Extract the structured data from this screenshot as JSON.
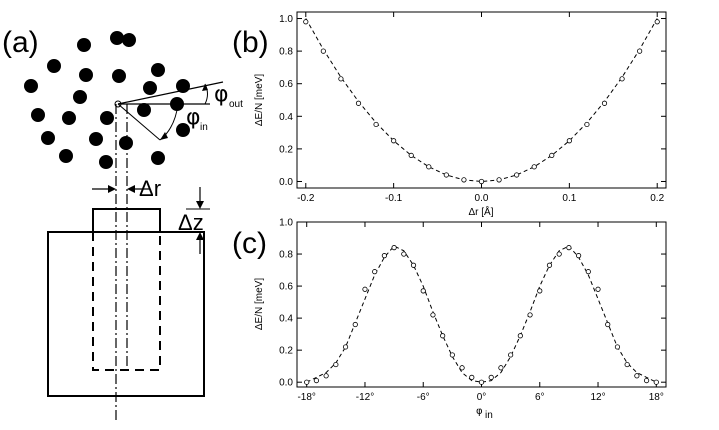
{
  "panels": {
    "a": "(a)",
    "b": "(b)",
    "c": "(c)"
  },
  "schematic": {
    "phi_out_symbol": "φ",
    "phi_out_sub": "out",
    "phi_in_symbol": "φ",
    "phi_in_sub": "in",
    "delta_r": "Δr",
    "delta_z": "Δz"
  },
  "chart_data": [
    {
      "type": "scatter",
      "panel": "(b)",
      "title": "",
      "xlabel": "Δr [Å]",
      "ylabel": "ΔE/N [meV]",
      "xlim": [
        -0.21,
        0.21
      ],
      "ylim": [
        -0.04,
        1.04
      ],
      "xticks": [
        -0.2,
        -0.1,
        0.0,
        0.1,
        0.2
      ],
      "xtick_labels": [
        "-0.2",
        "-0.1",
        "0.0",
        "0.1",
        "0.2"
      ],
      "yticks": [
        0.0,
        0.2,
        0.4,
        0.6,
        0.8,
        1.0
      ],
      "ytick_labels": [
        "0.0",
        "0.2",
        "0.4",
        "0.6",
        "0.8",
        "1.0"
      ],
      "grid": false,
      "series": [
        {
          "style": "markers",
          "x": [
            -0.2,
            -0.18,
            -0.16,
            -0.14,
            -0.12,
            -0.1,
            -0.08,
            -0.06,
            -0.04,
            -0.02,
            0.0,
            0.02,
            0.04,
            0.06,
            0.08,
            0.1,
            0.12,
            0.14,
            0.16,
            0.18,
            0.2
          ],
          "y": [
            0.98,
            0.8,
            0.63,
            0.48,
            0.35,
            0.25,
            0.16,
            0.09,
            0.04,
            0.01,
            0.0,
            0.01,
            0.04,
            0.09,
            0.16,
            0.25,
            0.35,
            0.48,
            0.63,
            0.8,
            0.98
          ]
        },
        {
          "style": "dashed-fit",
          "x": [
            -0.2,
            -0.18,
            -0.16,
            -0.14,
            -0.12,
            -0.1,
            -0.08,
            -0.06,
            -0.04,
            -0.02,
            0.0,
            0.02,
            0.04,
            0.06,
            0.08,
            0.1,
            0.12,
            0.14,
            0.16,
            0.18,
            0.2
          ],
          "y": [
            1.0,
            0.81,
            0.64,
            0.49,
            0.36,
            0.25,
            0.16,
            0.09,
            0.04,
            0.01,
            0.0,
            0.01,
            0.04,
            0.09,
            0.16,
            0.25,
            0.36,
            0.49,
            0.64,
            0.81,
            1.0
          ]
        }
      ]
    },
    {
      "type": "scatter",
      "panel": "(c)",
      "title": "",
      "xlabel_symbol": "φ",
      "xlabel_sub": "in",
      "ylabel": "ΔE/N [meV]",
      "xlim": [
        -19,
        19
      ],
      "ylim": [
        -0.03,
        1.0
      ],
      "xticks": [
        -18,
        -12,
        -6,
        0,
        6,
        12,
        18
      ],
      "xtick_labels": [
        "-18°",
        "-12°",
        "-6°",
        "0°",
        "6°",
        "12°",
        "18°"
      ],
      "yticks": [
        0.0,
        0.2,
        0.4,
        0.6,
        0.8,
        1.0
      ],
      "ytick_labels": [
        "0.0",
        "0.2",
        "0.4",
        "0.6",
        "0.8",
        "1.0"
      ],
      "grid": false,
      "series": [
        {
          "style": "markers",
          "x": [
            -18,
            -17,
            -16,
            -15,
            -14,
            -13,
            -12,
            -11,
            -10,
            -9,
            -8,
            -7,
            -6,
            -5,
            -4,
            -3,
            -2,
            -1,
            0,
            1,
            2,
            3,
            4,
            5,
            6,
            7,
            8,
            9,
            10,
            11,
            12,
            13,
            14,
            15,
            16,
            17,
            18
          ],
          "y": [
            0.0,
            0.01,
            0.04,
            0.11,
            0.22,
            0.36,
            0.58,
            0.69,
            0.79,
            0.84,
            0.8,
            0.73,
            0.57,
            0.42,
            0.29,
            0.17,
            0.09,
            0.03,
            0.0,
            0.03,
            0.09,
            0.17,
            0.29,
            0.42,
            0.57,
            0.73,
            0.8,
            0.84,
            0.79,
            0.69,
            0.58,
            0.36,
            0.22,
            0.11,
            0.04,
            0.01,
            0.0
          ]
        },
        {
          "style": "dashed-fit",
          "x": [
            -18,
            -17,
            -16,
            -15,
            -14,
            -13,
            -12,
            -11,
            -10,
            -9,
            -8,
            -7,
            -6,
            -5,
            -4,
            -3,
            -2,
            -1,
            0,
            1,
            2,
            3,
            4,
            5,
            6,
            7,
            8,
            9,
            10,
            11,
            12,
            13,
            14,
            15,
            16,
            17,
            18
          ],
          "y": [
            0.0,
            0.03,
            0.06,
            0.12,
            0.22,
            0.37,
            0.52,
            0.67,
            0.78,
            0.85,
            0.82,
            0.73,
            0.6,
            0.44,
            0.29,
            0.16,
            0.06,
            0.01,
            0.0,
            0.01,
            0.06,
            0.16,
            0.29,
            0.44,
            0.6,
            0.73,
            0.82,
            0.85,
            0.78,
            0.67,
            0.52,
            0.37,
            0.22,
            0.12,
            0.06,
            0.03,
            0.0
          ]
        }
      ]
    }
  ]
}
